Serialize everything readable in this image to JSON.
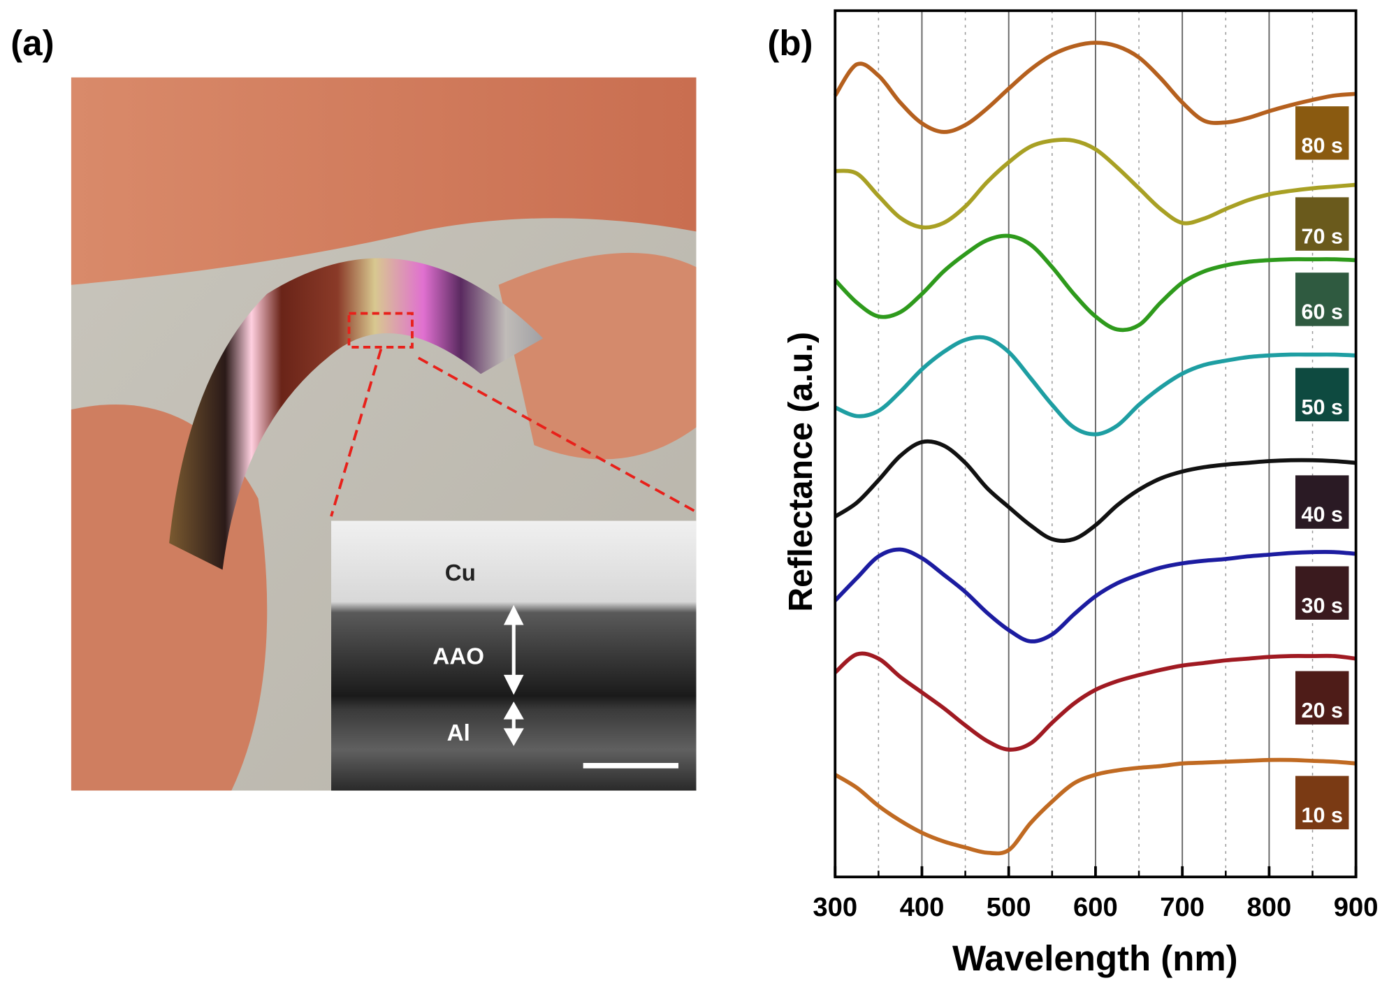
{
  "panel_a": {
    "label": "(a)",
    "layers": [
      "Cu",
      "AAO",
      "Al"
    ]
  },
  "chart_data": {
    "type": "line",
    "panel_label": "(b)",
    "x_label": "Wavelength (nm)",
    "y_label": "Reflectance (a.u.)",
    "xlim": [
      300,
      900
    ],
    "xticks": [
      300,
      400,
      500,
      600,
      700,
      800,
      900
    ],
    "xminorticks": [
      350,
      450,
      550,
      650,
      750,
      850
    ],
    "ylim": [
      0,
      100
    ],
    "grid": true,
    "x": [
      300,
      325,
      350,
      375,
      400,
      425,
      450,
      475,
      500,
      525,
      550,
      575,
      600,
      625,
      650,
      675,
      700,
      725,
      750,
      775,
      800,
      825,
      850,
      875,
      900
    ],
    "series": [
      {
        "name": "80 s",
        "color": "#b5601e",
        "swatch": "#8a5a10",
        "values": [
          90.2,
          93.8,
          92.5,
          89.4,
          87.0,
          86.0,
          86.8,
          88.7,
          91.0,
          93.2,
          94.9,
          95.9,
          96.3,
          95.9,
          94.6,
          92.2,
          89.4,
          87.3,
          87.1,
          87.6,
          88.4,
          89.1,
          89.7,
          90.2,
          90.4
        ]
      },
      {
        "name": "70 s",
        "color": "#a8a024",
        "swatch": "#6a5a1c",
        "values": [
          81.5,
          81.2,
          78.6,
          76.1,
          75.0,
          75.5,
          77.4,
          80.2,
          82.5,
          84.3,
          85.0,
          85.0,
          84.0,
          81.9,
          79.5,
          77.1,
          75.5,
          76.0,
          77.1,
          78.1,
          78.8,
          79.2,
          79.5,
          79.7,
          79.9
        ]
      },
      {
        "name": "60 s",
        "color": "#2e9a1c",
        "swatch": "#2f5a40",
        "values": [
          68.9,
          66.3,
          64.7,
          65.2,
          67.3,
          69.9,
          71.9,
          73.5,
          74.0,
          73.0,
          70.4,
          67.3,
          64.7,
          63.2,
          63.7,
          66.3,
          68.6,
          69.9,
          70.6,
          71.0,
          71.2,
          71.3,
          71.3,
          71.3,
          71.2
        ]
      },
      {
        "name": "50 s",
        "color": "#1e9ea2",
        "swatch": "#0e4a40",
        "values": [
          54.2,
          53.2,
          53.8,
          56.0,
          58.6,
          60.6,
          62.0,
          62.2,
          60.6,
          57.6,
          54.5,
          51.9,
          51.1,
          52.1,
          54.5,
          56.5,
          58.1,
          59.1,
          59.6,
          60.0,
          60.2,
          60.3,
          60.3,
          60.3,
          60.2
        ]
      },
      {
        "name": "40 s",
        "color": "#111111",
        "swatch": "#2a1a24",
        "values": [
          41.6,
          43.2,
          45.8,
          48.6,
          50.2,
          49.8,
          47.8,
          44.9,
          42.7,
          40.6,
          39.0,
          39.0,
          40.6,
          42.9,
          44.7,
          46.0,
          46.8,
          47.3,
          47.6,
          47.8,
          48.0,
          48.1,
          48.1,
          48.0,
          47.8
        ]
      },
      {
        "name": "30 s",
        "color": "#1c1ca0",
        "swatch": "#3a1a1e",
        "values": [
          31.9,
          34.5,
          37.0,
          37.8,
          36.8,
          34.9,
          32.9,
          30.5,
          28.5,
          27.2,
          28.0,
          30.3,
          32.4,
          33.9,
          34.9,
          35.7,
          36.2,
          36.5,
          36.7,
          37.0,
          37.2,
          37.4,
          37.5,
          37.5,
          37.3
        ]
      },
      {
        "name": "20 s",
        "color": "#a01a22",
        "swatch": "#4e1c18",
        "values": [
          23.6,
          25.7,
          25.2,
          23.1,
          21.3,
          19.5,
          17.5,
          15.7,
          14.7,
          15.4,
          17.8,
          20.0,
          21.6,
          22.6,
          23.3,
          23.9,
          24.4,
          24.7,
          25.0,
          25.2,
          25.4,
          25.5,
          25.5,
          25.5,
          25.2
        ]
      },
      {
        "name": "10 s",
        "color": "#c06a22",
        "swatch": "#7a3a14",
        "values": [
          11.8,
          10.3,
          8.2,
          6.5,
          5.1,
          4.1,
          3.4,
          2.8,
          3.1,
          6.2,
          8.7,
          10.8,
          11.8,
          12.3,
          12.6,
          12.8,
          13.1,
          13.2,
          13.3,
          13.4,
          13.5,
          13.5,
          13.4,
          13.3,
          13.1
        ]
      }
    ]
  }
}
